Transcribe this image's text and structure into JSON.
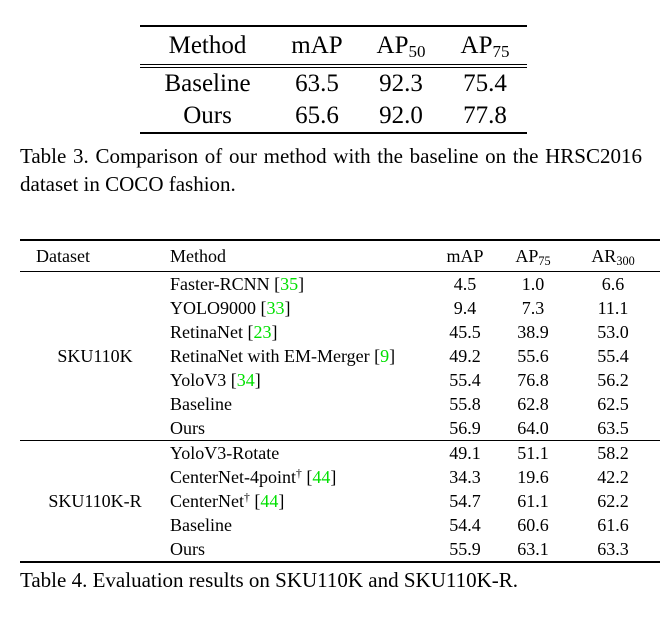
{
  "page": {
    "background": "#ffffff",
    "text_color": "#000000",
    "citation_color": "#00e000"
  },
  "table3": {
    "headers": [
      {
        "text": "Method"
      },
      {
        "text": "mAP"
      },
      {
        "text": "AP",
        "sub": "50"
      },
      {
        "text": "AP",
        "sub": "75"
      }
    ],
    "rows": [
      {
        "method": {
          "name": "Baseline"
        },
        "values": [
          {
            "v": "63.5",
            "bold": false
          },
          {
            "v": "92.3",
            "bold": true
          },
          {
            "v": "75.4",
            "bold": false
          }
        ]
      },
      {
        "method": {
          "name": "Ours"
        },
        "values": [
          {
            "v": "65.6",
            "bold": true
          },
          {
            "v": "92.0",
            "bold": false
          },
          {
            "v": "77.8",
            "bold": true
          }
        ]
      }
    ],
    "caption": "Table 3. Comparison of our method with the baseline on the HRSC2016 dataset in COCO fashion."
  },
  "table4": {
    "headers": [
      {
        "text": "Dataset"
      },
      {
        "text": "Method"
      },
      {
        "text": "mAP"
      },
      {
        "text": "AP",
        "sub": "75"
      },
      {
        "text": "AR",
        "sub": "300"
      }
    ],
    "groups": [
      {
        "dataset": "SKU110K",
        "rows": [
          {
            "method": {
              "name": "Faster-RCNN",
              "cite": "35"
            },
            "values": [
              {
                "v": "4.5"
              },
              {
                "v": "1.0"
              },
              {
                "v": "6.6"
              }
            ]
          },
          {
            "method": {
              "name": "YOLO9000",
              "cite": "33"
            },
            "values": [
              {
                "v": "9.4"
              },
              {
                "v": "7.3"
              },
              {
                "v": "11.1"
              }
            ]
          },
          {
            "method": {
              "name": "RetinaNet",
              "cite": "23"
            },
            "values": [
              {
                "v": "45.5"
              },
              {
                "v": "38.9"
              },
              {
                "v": "53.0"
              }
            ]
          },
          {
            "method": {
              "name": "RetinaNet with EM-Merger",
              "cite": "9"
            },
            "values": [
              {
                "v": "49.2"
              },
              {
                "v": "55.6"
              },
              {
                "v": "55.4"
              }
            ]
          },
          {
            "method": {
              "name": "YoloV3",
              "cite": "34"
            },
            "values": [
              {
                "v": "55.4"
              },
              {
                "v": "76.8"
              },
              {
                "v": "56.2"
              }
            ]
          },
          {
            "method": {
              "name": "Baseline"
            },
            "values": [
              {
                "v": "55.8"
              },
              {
                "v": "62.8"
              },
              {
                "v": "62.5"
              }
            ]
          },
          {
            "method": {
              "name": "Ours"
            },
            "values": [
              {
                "v": "56.9",
                "bold": true
              },
              {
                "v": "64.0",
                "bold": true
              },
              {
                "v": "63.5",
                "bold": true
              }
            ]
          }
        ]
      },
      {
        "dataset": "SKU110K-R",
        "rows": [
          {
            "method": {
              "name": "YoloV3-Rotate"
            },
            "values": [
              {
                "v": "49.1"
              },
              {
                "v": "51.1"
              },
              {
                "v": "58.2"
              }
            ]
          },
          {
            "method": {
              "name": "CenterNet-4point",
              "sup": "†",
              "cite": "44"
            },
            "values": [
              {
                "v": "34.3"
              },
              {
                "v": "19.6"
              },
              {
                "v": "42.2"
              }
            ]
          },
          {
            "method": {
              "name": "CenterNet",
              "sup": "†",
              "cite": "44"
            },
            "values": [
              {
                "v": "54.7"
              },
              {
                "v": "61.1"
              },
              {
                "v": "62.2"
              }
            ]
          },
          {
            "method": {
              "name": "Baseline"
            },
            "values": [
              {
                "v": "54.4"
              },
              {
                "v": "60.6"
              },
              {
                "v": "61.6"
              }
            ]
          },
          {
            "method": {
              "name": "Ours"
            },
            "values": [
              {
                "v": "55.9",
                "bold": true
              },
              {
                "v": "63.1",
                "bold": true
              },
              {
                "v": "63.3",
                "bold": true
              }
            ]
          }
        ]
      }
    ],
    "caption": "Table 4. Evaluation results on SKU110K and SKU110K-R."
  }
}
